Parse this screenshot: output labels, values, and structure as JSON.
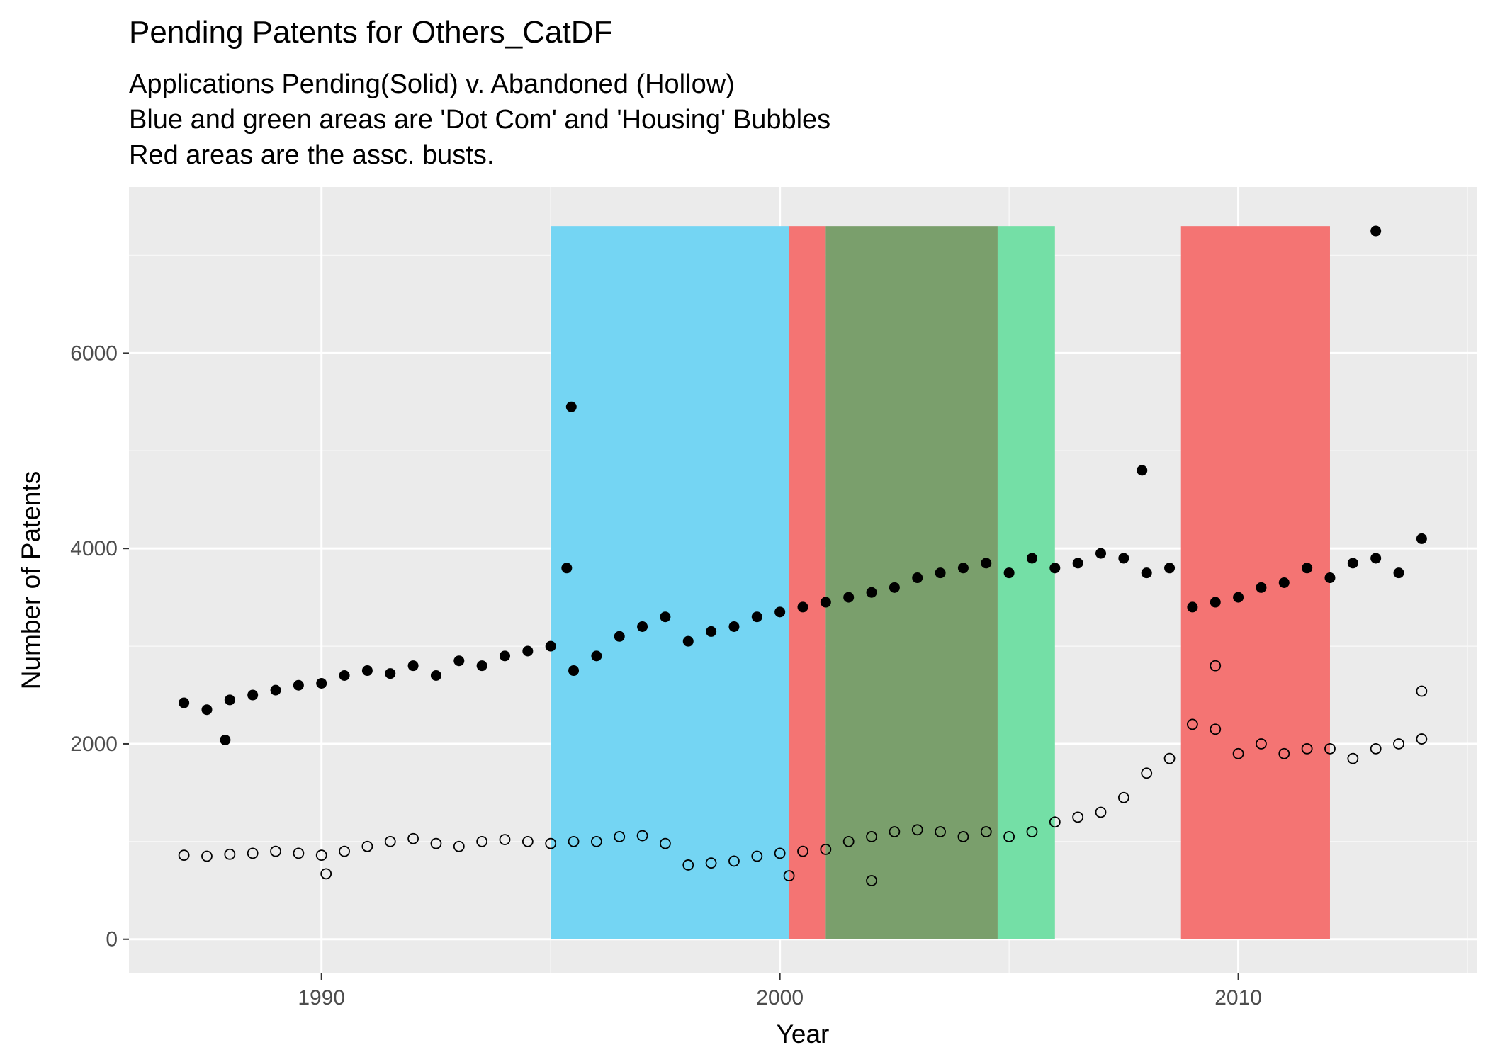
{
  "chart_data": {
    "type": "scatter",
    "title": "Pending Patents for Others_CatDF",
    "subtitle_lines": [
      "Applications Pending(Solid) v. Abandoned (Hollow)",
      "Blue and green areas are 'Dot Com' and 'Housing' Bubbles",
      "Red areas are the assc. busts."
    ],
    "xlabel": "Year",
    "ylabel": "Number of Patents",
    "xlim": [
      1985.8,
      2015.2
    ],
    "ylim": [
      -350,
      7700
    ],
    "xticks": [
      1990,
      2000,
      2010
    ],
    "xticklabels": [
      "1990",
      "2000",
      "2010"
    ],
    "yticks": [
      0,
      2000,
      4000,
      6000
    ],
    "yticklabels": [
      "0",
      "2000",
      "4000",
      "6000"
    ],
    "grid": true,
    "shaded_regions": [
      {
        "start": 1995.0,
        "end": 2000.2,
        "color": "#74d5f3",
        "meaning": "Dot Com bubble"
      },
      {
        "start": 2000.2,
        "end": 2001.0,
        "color": "#f47473",
        "meaning": "bust"
      },
      {
        "start": 2001.0,
        "end": 2004.75,
        "color": "#7a9f6c",
        "meaning": "overlap"
      },
      {
        "start": 2004.75,
        "end": 2006.0,
        "color": "#74dfa6",
        "meaning": "Housing bubble"
      },
      {
        "start": 2008.75,
        "end": 2012.0,
        "color": "#f47473",
        "meaning": "bust"
      }
    ],
    "series": [
      {
        "style": "solid",
        "x": [
          1987.0,
          1987.5,
          1988.0,
          1988.5,
          1989.0,
          1989.5,
          1990.0,
          1990.5,
          1991.0,
          1991.5,
          1992.0,
          1992.5,
          1993.0,
          1993.5,
          1994.0,
          1994.5,
          1995.0,
          1995.5,
          1996.0,
          1996.5,
          1997.0,
          1997.5,
          1998.0,
          1998.5,
          1999.0,
          1999.5,
          2000.0,
          2000.5,
          2001.0,
          2001.5,
          2002.0,
          2002.5,
          2003.0,
          2003.5,
          2004.0,
          2004.5,
          2005.0,
          2005.5,
          2006.0,
          2006.5,
          2007.0,
          2007.5,
          2008.0,
          2008.5,
          2009.0,
          2009.5,
          2010.0,
          2010.5,
          2011.0,
          2011.5,
          2012.0,
          2012.5,
          2013.0,
          2013.5,
          2014.0
        ],
        "y": [
          2420,
          2350,
          2450,
          2500,
          2550,
          2600,
          2620,
          2700,
          2750,
          2720,
          2800,
          2700,
          2850,
          2800,
          2900,
          2950,
          3000,
          2750,
          2900,
          3100,
          3200,
          3300,
          3050,
          3150,
          3200,
          3300,
          3350,
          3400,
          3450,
          3500,
          3550,
          3600,
          3700,
          3750,
          3800,
          3850,
          3750,
          3900,
          3800,
          3850,
          3950,
          3900,
          3750,
          3800,
          3400,
          3450,
          3500,
          3600,
          3650,
          3800,
          3700,
          3850,
          3900,
          3750,
          4100
        ],
        "outliers": [
          {
            "x": 1995.45,
            "y": 5450
          },
          {
            "x": 1995.35,
            "y": 3800
          },
          {
            "x": 2007.9,
            "y": 4800
          },
          {
            "x": 2013.0,
            "y": 7250
          },
          {
            "x": 1987.9,
            "y": 2040
          }
        ]
      },
      {
        "style": "hollow",
        "x": [
          1987.0,
          1987.5,
          1988.0,
          1988.5,
          1989.0,
          1989.5,
          1990.0,
          1990.5,
          1991.0,
          1991.5,
          1992.0,
          1992.5,
          1993.0,
          1993.5,
          1994.0,
          1994.5,
          1995.0,
          1995.5,
          1996.0,
          1996.5,
          1997.0,
          1997.5,
          1998.0,
          1998.5,
          1999.0,
          1999.5,
          2000.0,
          2000.5,
          2001.0,
          2001.5,
          2002.0,
          2002.5,
          2003.0,
          2003.5,
          2004.0,
          2004.5,
          2005.0,
          2005.5,
          2006.0,
          2006.5,
          2007.0,
          2007.5,
          2008.0,
          2008.5,
          2009.0,
          2009.5,
          2010.0,
          2010.5,
          2011.0,
          2011.5,
          2012.0,
          2012.5,
          2013.0,
          2013.5,
          2014.0
        ],
        "y": [
          860,
          850,
          870,
          880,
          900,
          880,
          860,
          900,
          950,
          1000,
          1030,
          980,
          950,
          1000,
          1020,
          1000,
          980,
          1000,
          1000,
          1050,
          1060,
          980,
          760,
          780,
          800,
          850,
          880,
          900,
          920,
          1000,
          1050,
          1100,
          1120,
          1100,
          1050,
          1100,
          1050,
          1100,
          1200,
          1250,
          1300,
          1450,
          1700,
          1850,
          2200,
          2150,
          1900,
          2000,
          1900,
          1950,
          1950,
          1850,
          1950,
          2000,
          2050
        ],
        "outliers": [
          {
            "x": 2009.5,
            "y": 2800
          },
          {
            "x": 2014.0,
            "y": 2540
          },
          {
            "x": 1990.1,
            "y": 670
          },
          {
            "x": 2002.0,
            "y": 600
          },
          {
            "x": 2000.2,
            "y": 650
          }
        ]
      }
    ]
  }
}
